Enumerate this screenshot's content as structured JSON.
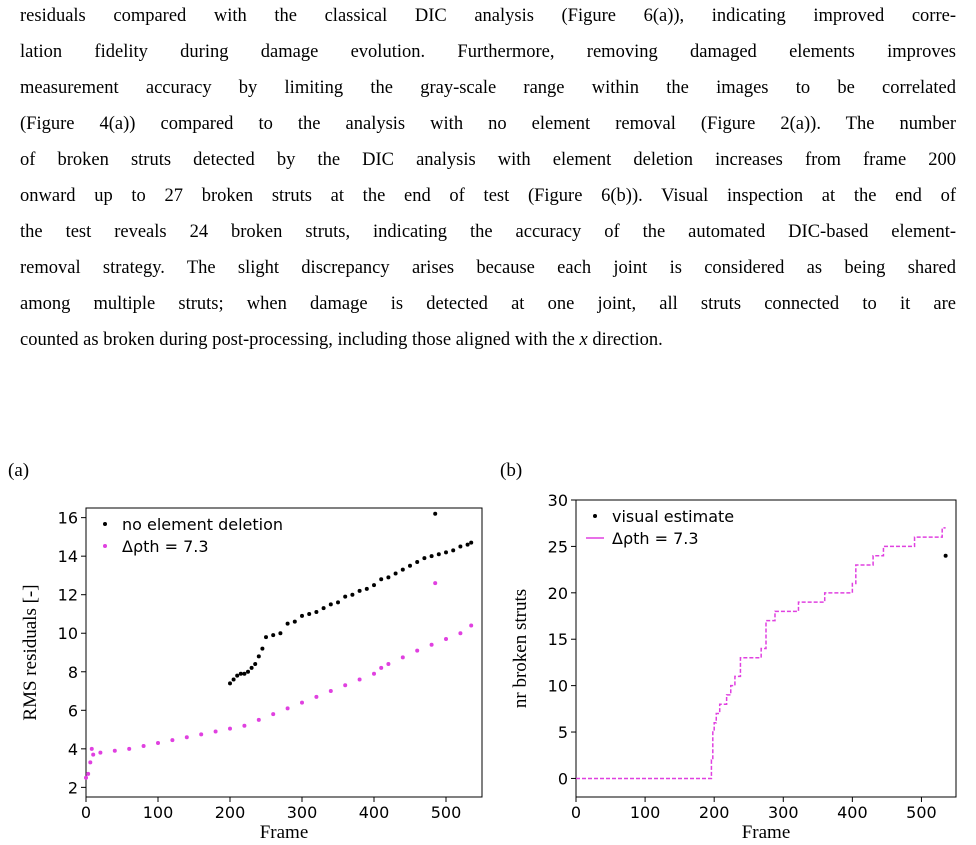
{
  "paragraph": {
    "lines": [
      "residuals compared with the classical DIC analysis (Figure 6(a)), indicating improved corre-",
      "lation fidelity during damage evolution. Furthermore, removing damaged elements improves",
      "measurement accuracy by limiting the gray-scale range within the images to be correlated",
      "(Figure 4(a)) compared to the analysis with no element removal (Figure 2(a)). The number",
      "of broken struts detected by the DIC analysis with element deletion increases from frame 200",
      "onward up to 27 broken struts at the end of test (Figure 6(b)). Visual inspection at the end of",
      "the test reveals 24 broken struts, indicating the accuracy of the automated DIC-based element-",
      "removal strategy. The slight discrepancy arises because each joint is considered as being shared",
      "among multiple struts; when damage is detected at one joint, all struts connected to it are"
    ],
    "last_line": [
      "counted as broken during post-processing, including those aligned with the ",
      "x",
      " direction."
    ]
  },
  "chart_data": [
    {
      "type": "scatter",
      "panel_label": "(a)",
      "xlabel": "Frame",
      "ylabel": "RMS residuals [-]",
      "xlim": [
        0,
        550
      ],
      "ylim": [
        1.5,
        16.5
      ],
      "xticks": [
        0,
        100,
        200,
        300,
        400,
        500
      ],
      "yticks": [
        2,
        4,
        6,
        8,
        10,
        12,
        14,
        16
      ],
      "legend": "upper left",
      "series": [
        {
          "name": "no element deletion",
          "color": "#000000",
          "x": [
            200,
            205,
            210,
            215,
            220,
            225,
            230,
            235,
            240,
            245,
            250,
            260,
            270,
            280,
            290,
            300,
            310,
            320,
            330,
            340,
            350,
            360,
            370,
            380,
            390,
            400,
            410,
            420,
            430,
            440,
            450,
            460,
            470,
            480,
            485,
            490,
            500,
            510,
            520,
            530,
            535
          ],
          "values": [
            7.4,
            7.6,
            7.8,
            7.9,
            7.9,
            8.0,
            8.2,
            8.4,
            8.8,
            9.2,
            9.8,
            9.9,
            10.0,
            10.5,
            10.6,
            10.9,
            11.0,
            11.1,
            11.3,
            11.5,
            11.6,
            11.9,
            12.0,
            12.2,
            12.3,
            12.5,
            12.8,
            12.9,
            13.1,
            13.3,
            13.5,
            13.7,
            13.9,
            14.0,
            16.2,
            14.1,
            14.2,
            14.3,
            14.5,
            14.6,
            14.7
          ]
        },
        {
          "name": "Δρth = 7.3",
          "color": "#e040e0",
          "x": [
            0,
            3,
            6,
            8,
            10,
            20,
            40,
            60,
            80,
            100,
            120,
            140,
            160,
            180,
            200,
            220,
            240,
            260,
            280,
            300,
            320,
            340,
            360,
            380,
            400,
            410,
            420,
            440,
            460,
            480,
            485,
            500,
            520,
            535
          ],
          "values": [
            2.5,
            2.7,
            3.3,
            4.0,
            3.7,
            3.8,
            3.9,
            4.0,
            4.15,
            4.3,
            4.45,
            4.6,
            4.75,
            4.9,
            5.05,
            5.2,
            5.5,
            5.8,
            6.1,
            6.4,
            6.7,
            7.0,
            7.3,
            7.6,
            7.9,
            8.2,
            8.4,
            8.75,
            9.1,
            9.4,
            12.6,
            9.7,
            10.0,
            10.4
          ]
        }
      ]
    },
    {
      "type": "line",
      "panel_label": "(b)",
      "xlabel": "Frame",
      "ylabel": "nr broken struts",
      "xlim": [
        0,
        550
      ],
      "ylim": [
        -2,
        30
      ],
      "xticks": [
        0,
        100,
        200,
        300,
        400,
        500
      ],
      "yticks": [
        0,
        5,
        10,
        15,
        20,
        25,
        30
      ],
      "legend": "upper left",
      "series": [
        {
          "name": "visual estimate",
          "color": "#000000",
          "marker": "dot",
          "x": [
            535
          ],
          "values": [
            24
          ]
        },
        {
          "name": "Δρth = 7.3",
          "color": "#e040e0",
          "linestyle": "dashed",
          "drawstyle": "steps-post",
          "x": [
            0,
            196,
            198,
            200,
            203,
            208,
            218,
            224,
            230,
            238,
            268,
            275,
            288,
            322,
            360,
            400,
            405,
            430,
            445,
            490,
            530,
            535
          ],
          "values": [
            0,
            2,
            5,
            6,
            7,
            8,
            9,
            10,
            11,
            13,
            14,
            17,
            18,
            19,
            20,
            21,
            23,
            24,
            25,
            26,
            27,
            27
          ]
        }
      ]
    }
  ]
}
